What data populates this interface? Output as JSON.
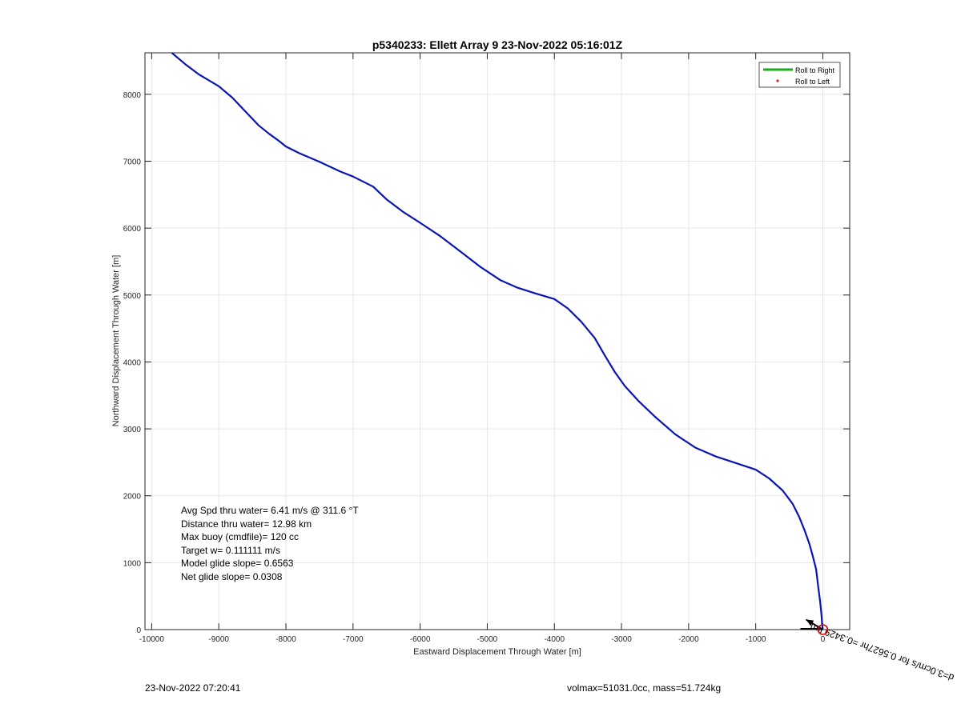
{
  "chart_data": {
    "type": "line",
    "title": "p5340233: Ellett Array 9 23-Nov-2022 05:16:01Z",
    "xlabel": "Eastward Displacement Through Water [m]",
    "ylabel": "Northward Displacement Through Water [m]",
    "xlim": [
      -10100,
      400
    ],
    "ylim": [
      0,
      8620
    ],
    "xticks": [
      -10000,
      -9000,
      -8000,
      -7000,
      -6000,
      -5000,
      -4000,
      -3000,
      -2000,
      -1000,
      0
    ],
    "yticks": [
      0,
      1000,
      2000,
      3000,
      4000,
      5000,
      6000,
      7000,
      8000
    ],
    "grid": true,
    "legend": {
      "placement": "top-right",
      "entries": [
        {
          "label": "Roll to Right",
          "color": "#1aab1a",
          "style": "line"
        },
        {
          "label": "Roll to Left",
          "color": "#e02020",
          "style": "dot"
        }
      ]
    },
    "series": [
      {
        "color": "#0a14b4",
        "x": [
          -9700,
          -9500,
          -9300,
          -9000,
          -8800,
          -8600,
          -8400,
          -8250,
          -8100,
          -8000,
          -7800,
          -7500,
          -7200,
          -7000,
          -6700,
          -6500,
          -6250,
          -6000,
          -5700,
          -5400,
          -5100,
          -4800,
          -4550,
          -4300,
          -4000,
          -3800,
          -3600,
          -3400,
          -3250,
          -3100,
          -2950,
          -2750,
          -2500,
          -2200,
          -1900,
          -1600,
          -1300,
          -1000,
          -800,
          -600,
          -450,
          -350,
          -270,
          -200,
          -150,
          -100,
          -70,
          -40,
          -20,
          -10,
          0
        ],
        "y": [
          8620,
          8450,
          8300,
          8120,
          7950,
          7740,
          7530,
          7410,
          7300,
          7220,
          7120,
          6990,
          6850,
          6770,
          6620,
          6430,
          6240,
          6080,
          5880,
          5650,
          5420,
          5220,
          5110,
          5030,
          4940,
          4800,
          4600,
          4360,
          4100,
          3850,
          3640,
          3420,
          3180,
          2920,
          2720,
          2590,
          2490,
          2390,
          2260,
          2080,
          1880,
          1680,
          1480,
          1280,
          1100,
          900,
          650,
          420,
          220,
          80,
          0
        ]
      }
    ],
    "end_marker": {
      "x": 0,
      "y": 0,
      "color": "#d40000"
    },
    "current_arrow": {
      "x": -250,
      "y": 150,
      "label": "d=3.0cm/s for 0.5627hr =0.3429 km"
    },
    "annotations": [
      "Avg Spd thru water=  6.41 m/s @ 311.6 °T",
      "Distance thru water= 12.98 km",
      "Max buoy (cmdfile)= 120 cc",
      "Target w= 0.111111 m/s",
      "Model glide slope= 0.6563",
      "Net glide slope= 0.0308"
    ]
  },
  "footer": {
    "left": "23-Nov-2022 07:20:41",
    "right": "volmax=51031.0cc, mass=51.724kg"
  },
  "colors": {
    "track": "#0a14b4",
    "grid": "#e6e6e6",
    "axis": "#262626"
  }
}
